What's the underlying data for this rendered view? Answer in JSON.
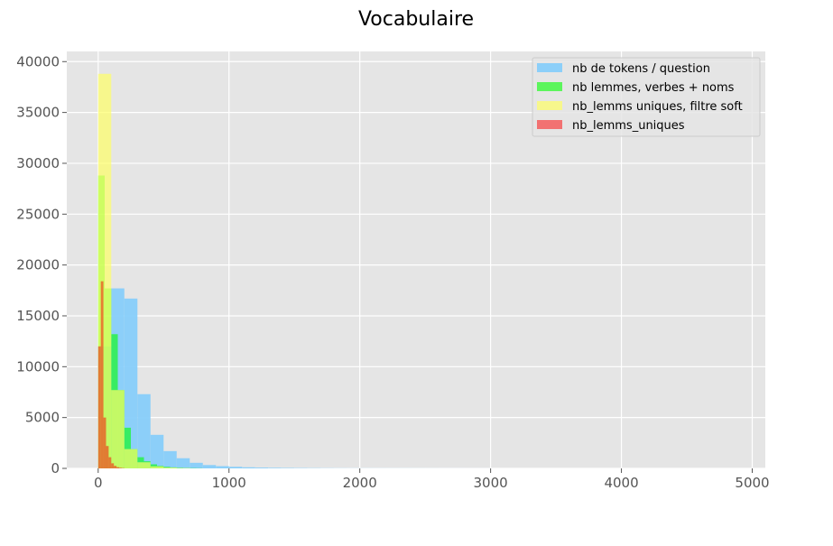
{
  "chart_data": {
    "type": "histogram",
    "title": "Vocabulaire",
    "xlabel": "",
    "ylabel": "",
    "xlim": [
      -240,
      5100
    ],
    "ylim": [
      0,
      41000
    ],
    "x_ticks": [
      0,
      1000,
      2000,
      3000,
      4000,
      5000
    ],
    "y_ticks": [
      0,
      5000,
      10000,
      15000,
      20000,
      25000,
      30000,
      35000,
      40000
    ],
    "grid": true,
    "legend_position": "top-right",
    "series": [
      {
        "name": "nb de tokens / question",
        "color": "#87CEFA",
        "opacity": 0.95,
        "bin_start": 0,
        "bin_width": 100,
        "counts": [
          12000,
          17700,
          16700,
          7300,
          3300,
          1700,
          1000,
          550,
          330,
          220,
          160,
          110,
          80,
          60,
          45,
          35,
          28,
          20,
          15,
          12,
          10,
          9,
          8,
          7,
          6,
          5,
          4,
          4,
          3,
          3
        ]
      },
      {
        "name": "nb lemmes, verbes + noms",
        "color": "#00FF00",
        "opacity": 0.6,
        "bin_start": 0,
        "bin_width": 50,
        "counts": [
          28800,
          17700,
          13200,
          7700,
          4000,
          1900,
          1100,
          700,
          400,
          250,
          150,
          100,
          60,
          40,
          25,
          15
        ]
      },
      {
        "name": "nb_lemms uniques, filtre soft",
        "color": "#FFFF66",
        "opacity": 0.7,
        "bin_start": 0,
        "bin_width": 100,
        "counts": [
          38800,
          7700,
          1900,
          600,
          200,
          80,
          30
        ]
      },
      {
        "name": "nb_lemms_uniques",
        "color": "#FF0000",
        "opacity": 0.5,
        "bin_start": 0,
        "bin_width": 20,
        "counts": [
          12000,
          18400,
          5000,
          2200,
          1100,
          500,
          250,
          120,
          60,
          30
        ]
      }
    ]
  }
}
